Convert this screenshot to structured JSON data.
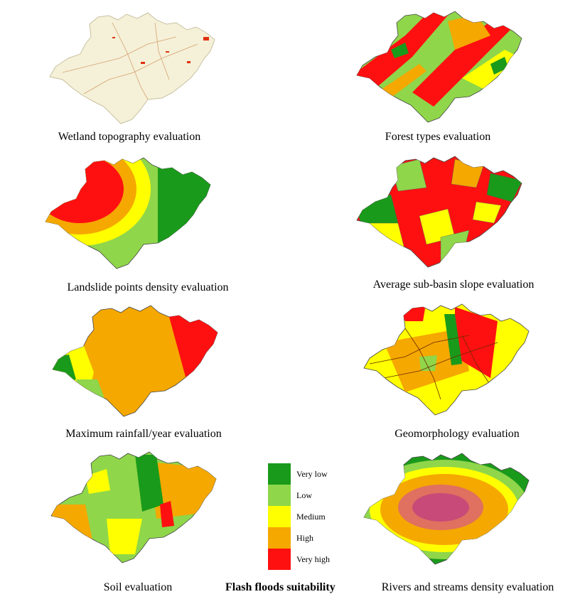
{
  "colors": {
    "very_low": "#1a9a1a",
    "low": "#8fd64a",
    "medium": "#ffff00",
    "high": "#f5a800",
    "very_high": "#ff1010"
  },
  "panels": [
    {
      "id": "wetland",
      "caption": "Wetland topography evaluation"
    },
    {
      "id": "forest",
      "caption": "Forest types evaluation"
    },
    {
      "id": "landslide",
      "caption": "Landslide points density evaluation"
    },
    {
      "id": "slope",
      "caption": "Average sub-basin slope evaluation"
    },
    {
      "id": "rainfall",
      "caption": "Maximum rainfall/year evaluation"
    },
    {
      "id": "geomorph",
      "caption": "Geomorphology evaluation"
    },
    {
      "id": "soil",
      "caption": "Soil evaluation"
    },
    {
      "id": "rivers",
      "caption": "Rivers and streams density evaluation"
    }
  ],
  "legend": {
    "title": "Flash floods suitability",
    "items": [
      {
        "label": "Very low",
        "color": "#1a9a1a"
      },
      {
        "label": "Low",
        "color": "#8fd64a"
      },
      {
        "label": "Medium",
        "color": "#ffff00"
      },
      {
        "label": "High",
        "color": "#f5a800"
      },
      {
        "label": "Very high",
        "color": "#ff1010"
      }
    ]
  }
}
